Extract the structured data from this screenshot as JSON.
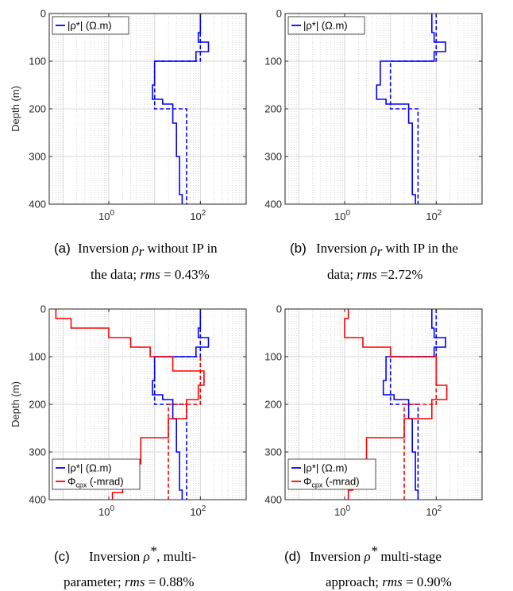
{
  "colors": {
    "blue": "#0000ff",
    "red": "#ff0000",
    "axis": "#262626",
    "grid": "#c8c8c8"
  },
  "chart_data": [
    {
      "panel": "a",
      "type": "line",
      "xscale": "log",
      "xlim": [
        0.05,
        1000
      ],
      "ylim": [
        0,
        400
      ],
      "y_reversed": true,
      "ylabel": "Depth (m)",
      "xticks": [
        "10^0",
        "10^2"
      ],
      "yticks": [
        "0",
        "100",
        "200",
        "300",
        "400"
      ],
      "grid": "x-minor dotted, y major",
      "legend": {
        "location": "top-left",
        "entries": [
          {
            "label": "|ρ*| (Ω.m)",
            "color": "#0000ff"
          }
        ]
      },
      "series": [
        {
          "color": "#0000ff",
          "dash": "solid",
          "points": [
            [
              100,
              0
            ],
            [
              100,
              40
            ],
            [
              90,
              40
            ],
            [
              90,
              60
            ],
            [
              150,
              60
            ],
            [
              150,
              80
            ],
            [
              80,
              80
            ],
            [
              80,
              100
            ],
            [
              10,
              100
            ],
            [
              10,
              150
            ],
            [
              9,
              150
            ],
            [
              9,
              180
            ],
            [
              15,
              180
            ],
            [
              15,
              190
            ],
            [
              25,
              190
            ],
            [
              25,
              230
            ],
            [
              30,
              230
            ],
            [
              30,
              300
            ],
            [
              35,
              300
            ],
            [
              35,
              380
            ],
            [
              40,
              380
            ],
            [
              40,
              400
            ]
          ]
        },
        {
          "color": "#0000ff",
          "dash": "dashed",
          "points": [
            [
              100,
              0
            ],
            [
              100,
              100
            ],
            [
              10,
              100
            ],
            [
              10,
              200
            ],
            [
              50,
              200
            ],
            [
              50,
              400
            ]
          ]
        }
      ],
      "caption": {
        "label": "(a)",
        "text": "Inversion ρr without IP in the data; rms = 0.43%"
      }
    },
    {
      "panel": "b",
      "type": "line",
      "xscale": "log",
      "xlim": [
        0.05,
        1000
      ],
      "ylim": [
        0,
        400
      ],
      "y_reversed": true,
      "ylabel": "",
      "xticks": [
        "10^0",
        "10^2"
      ],
      "yticks": [
        "0",
        "100",
        "200",
        "300",
        "400"
      ],
      "grid": "x-minor dotted, y major",
      "legend": {
        "location": "top-left",
        "entries": [
          {
            "label": "|ρ*| (Ω.m)",
            "color": "#0000ff"
          }
        ]
      },
      "series": [
        {
          "color": "#0000ff",
          "dash": "solid",
          "points": [
            [
              80,
              0
            ],
            [
              80,
              40
            ],
            [
              90,
              40
            ],
            [
              90,
              60
            ],
            [
              160,
              60
            ],
            [
              160,
              80
            ],
            [
              90,
              80
            ],
            [
              90,
              100
            ],
            [
              6,
              100
            ],
            [
              6,
              150
            ],
            [
              5,
              150
            ],
            [
              5,
              180
            ],
            [
              8,
              180
            ],
            [
              8,
              190
            ],
            [
              25,
              190
            ],
            [
              25,
              230
            ],
            [
              30,
              230
            ],
            [
              30,
              380
            ],
            [
              35,
              380
            ],
            [
              35,
              400
            ]
          ]
        },
        {
          "color": "#0000ff",
          "dash": "dashed",
          "points": [
            [
              100,
              0
            ],
            [
              100,
              100
            ],
            [
              10,
              100
            ],
            [
              10,
              200
            ],
            [
              40,
              200
            ],
            [
              40,
              400
            ]
          ]
        }
      ],
      "caption": {
        "label": "(b)",
        "text": "Inversion ρr with IP in the data; rms =2.72%"
      }
    },
    {
      "panel": "c",
      "type": "line",
      "xscale": "log",
      "xlim": [
        0.05,
        1000
      ],
      "ylim": [
        0,
        400
      ],
      "y_reversed": true,
      "ylabel": "Depth (m)",
      "xticks": [
        "10^0",
        "10^2"
      ],
      "yticks": [
        "0",
        "100",
        "200",
        "300",
        "400"
      ],
      "grid": "x-minor dotted, y major",
      "legend": {
        "location": "bottom-left",
        "entries": [
          {
            "label": "|ρ*| (Ω.m)",
            "color": "#0000ff"
          },
          {
            "label": "Φcpx (-mrad)",
            "color": "#ff0000"
          }
        ]
      },
      "series": [
        {
          "color": "#0000ff",
          "dash": "solid",
          "points": [
            [
              100,
              0
            ],
            [
              100,
              40
            ],
            [
              90,
              40
            ],
            [
              90,
              60
            ],
            [
              150,
              60
            ],
            [
              150,
              80
            ],
            [
              80,
              80
            ],
            [
              80,
              100
            ],
            [
              10,
              100
            ],
            [
              10,
              150
            ],
            [
              9,
              150
            ],
            [
              9,
              180
            ],
            [
              15,
              180
            ],
            [
              15,
              190
            ],
            [
              25,
              190
            ],
            [
              25,
              230
            ],
            [
              30,
              230
            ],
            [
              30,
              300
            ],
            [
              35,
              300
            ],
            [
              35,
              380
            ],
            [
              40,
              380
            ],
            [
              40,
              400
            ]
          ]
        },
        {
          "color": "#0000ff",
          "dash": "dashed",
          "points": [
            [
              100,
              0
            ],
            [
              100,
              100
            ],
            [
              10,
              100
            ],
            [
              10,
              200
            ],
            [
              50,
              200
            ],
            [
              50,
              400
            ]
          ]
        },
        {
          "color": "#ff0000",
          "dash": "solid",
          "points": [
            [
              0.07,
              0
            ],
            [
              0.07,
              20
            ],
            [
              0.15,
              20
            ],
            [
              0.15,
              40
            ],
            [
              1,
              40
            ],
            [
              1,
              60
            ],
            [
              3,
              60
            ],
            [
              3,
              80
            ],
            [
              8,
              80
            ],
            [
              8,
              100
            ],
            [
              25,
              100
            ],
            [
              25,
              130
            ],
            [
              120,
              130
            ],
            [
              120,
              160
            ],
            [
              90,
              160
            ],
            [
              90,
              190
            ],
            [
              50,
              190
            ],
            [
              50,
              230
            ],
            [
              20,
              230
            ],
            [
              20,
              270
            ],
            [
              5,
              270
            ],
            [
              5,
              325
            ],
            [
              2,
              325
            ],
            [
              2,
              385
            ],
            [
              1.2,
              385
            ],
            [
              1.2,
              400
            ]
          ]
        },
        {
          "color": "#ff0000",
          "dash": "dashed",
          "points": [
            [
              100,
              100
            ],
            [
              100,
              200
            ],
            [
              20,
              200
            ],
            [
              20,
              400
            ]
          ]
        }
      ],
      "caption": {
        "label": "(c)",
        "text": "Inversion ρ*, multi-parameter; rms = 0.88%"
      }
    },
    {
      "panel": "d",
      "type": "line",
      "xscale": "log",
      "xlim": [
        0.05,
        1000
      ],
      "ylim": [
        0,
        400
      ],
      "y_reversed": true,
      "ylabel": "",
      "xticks": [
        "10^0",
        "10^2"
      ],
      "yticks": [
        "0",
        "100",
        "200",
        "300",
        "400"
      ],
      "grid": "x-minor dotted, y major",
      "legend": {
        "location": "bottom-left",
        "entries": [
          {
            "label": "|ρ*| (Ω.m)",
            "color": "#0000ff"
          },
          {
            "label": "Φcpx (-mrad)",
            "color": "#ff0000"
          }
        ]
      },
      "series": [
        {
          "color": "#0000ff",
          "dash": "solid",
          "points": [
            [
              80,
              0
            ],
            [
              80,
              40
            ],
            [
              90,
              40
            ],
            [
              90,
              60
            ],
            [
              160,
              60
            ],
            [
              160,
              80
            ],
            [
              90,
              80
            ],
            [
              90,
              100
            ],
            [
              8,
              100
            ],
            [
              8,
              150
            ],
            [
              7,
              150
            ],
            [
              7,
              180
            ],
            [
              12,
              180
            ],
            [
              12,
              190
            ],
            [
              25,
              190
            ],
            [
              25,
              230
            ],
            [
              30,
              230
            ],
            [
              30,
              300
            ],
            [
              35,
              300
            ],
            [
              35,
              380
            ],
            [
              40,
              380
            ],
            [
              40,
              400
            ]
          ]
        },
        {
          "color": "#0000ff",
          "dash": "dashed",
          "points": [
            [
              100,
              0
            ],
            [
              100,
              100
            ],
            [
              10,
              100
            ],
            [
              10,
              200
            ],
            [
              40,
              200
            ],
            [
              40,
              400
            ]
          ]
        },
        {
          "color": "#ff0000",
          "dash": "solid",
          "points": [
            [
              1.2,
              0
            ],
            [
              1.2,
              20
            ],
            [
              1,
              20
            ],
            [
              1,
              60
            ],
            [
              2.5,
              60
            ],
            [
              2.5,
              80
            ],
            [
              10,
              80
            ],
            [
              10,
              100
            ],
            [
              100,
              100
            ],
            [
              100,
              160
            ],
            [
              170,
              160
            ],
            [
              170,
              190
            ],
            [
              80,
              190
            ],
            [
              80,
              230
            ],
            [
              20,
              230
            ],
            [
              20,
              270
            ],
            [
              3,
              270
            ],
            [
              3,
              320
            ],
            [
              1.5,
              320
            ],
            [
              1.5,
              380
            ],
            [
              1.2,
              380
            ],
            [
              1.2,
              400
            ]
          ]
        },
        {
          "color": "#ff0000",
          "dash": "dashed",
          "points": [
            [
              100,
              100
            ],
            [
              100,
              200
            ],
            [
              20,
              200
            ],
            [
              20,
              400
            ]
          ]
        }
      ],
      "caption": {
        "label": "(d)",
        "text": "Inversion ρ* multi-stage approach; rms = 0.90%"
      }
    }
  ],
  "captions": {
    "a": {
      "label": "(a)",
      "w1": "Inversion",
      "rho": "ρ",
      "sub": "r",
      "l1rest": " without IP in",
      "l2a": "the data; ",
      "l2rms": "rms",
      "l2b": " = 0.43%"
    },
    "b": {
      "label": "(b)",
      "w1": "Inversion",
      "rho": "ρ",
      "sub": "r",
      "l1rest": " with IP in the",
      "l2a": "data; ",
      "l2rms": "rms",
      "l2b": " =2.72%"
    },
    "c": {
      "label": "(c)",
      "w1": "Inversion",
      "rho": "ρ",
      "sup": "*",
      "l1rest": ",  multi-",
      "l2a": "parameter; ",
      "l2rms": "rms",
      "l2b": " = 0.88%"
    },
    "d": {
      "label": "(d)",
      "w1": "Inversion",
      "rho": "ρ",
      "sup": "*",
      "l1rest": " multi-stage",
      "l2a": "approach; ",
      "l2rms": "rms",
      "l2b": " = 0.90%"
    }
  }
}
